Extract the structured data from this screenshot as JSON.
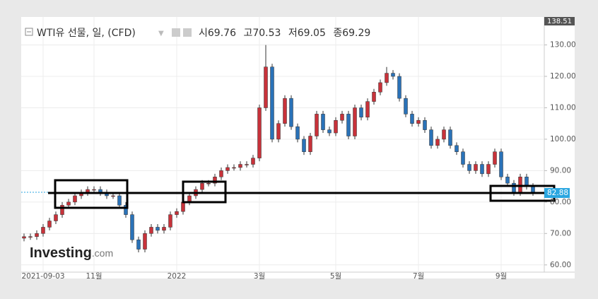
{
  "chart_data": {
    "type": "candlestick",
    "title": "WTI유 선물, 일, (CFD)",
    "ohlc_header": [
      {
        "label": "시",
        "value": 69.76
      },
      {
        "label": "고",
        "value": 70.53
      },
      {
        "label": "저",
        "value": 69.05
      },
      {
        "label": "종",
        "value": 69.29
      }
    ],
    "logo": {
      "brand": "Investing",
      "suffix": ".com"
    },
    "top_label": 138.51,
    "last_price": 82.88,
    "up_color": "#c8323a",
    "down_color": "#2a72b8",
    "categories": [
      null,
      null,
      null,
      "2021-09-03",
      null,
      null,
      null,
      null,
      null,
      null,
      null,
      "11월",
      null,
      null,
      null,
      null,
      null,
      null,
      null,
      null,
      null,
      null,
      null,
      null,
      "2022",
      null,
      null,
      null,
      null,
      null,
      null,
      null,
      null,
      null,
      null,
      null,
      null,
      "3월",
      null,
      null,
      null,
      null,
      null,
      null,
      null,
      null,
      null,
      null,
      null,
      "5월",
      null,
      null,
      null,
      null,
      null,
      null,
      null,
      null,
      null,
      null,
      null,
      null,
      "7월",
      null,
      null,
      null,
      null,
      null,
      null,
      null,
      null,
      null,
      null,
      null,
      null,
      "9월",
      null,
      null,
      null,
      null,
      null
    ],
    "open": [
      68.5,
      69,
      69,
      70,
      72,
      74,
      76,
      79,
      80,
      82,
      83,
      84,
      84,
      83,
      82,
      82,
      79,
      76,
      68,
      65,
      70,
      72,
      71,
      72,
      76,
      77,
      80,
      82,
      84,
      86,
      86,
      88,
      90,
      91,
      91,
      92,
      92,
      94,
      110,
      123,
      100,
      105,
      113,
      104,
      100,
      96,
      101,
      108,
      103,
      102,
      106,
      108,
      101,
      110,
      107,
      112,
      115,
      118,
      121,
      120,
      113,
      108,
      105,
      106,
      103,
      98,
      100,
      103,
      98,
      96,
      92,
      90,
      92,
      89,
      92,
      96,
      88,
      86,
      83,
      88,
      85
    ],
    "high": [
      70,
      70,
      71,
      73,
      75,
      77,
      80,
      81,
      83,
      84,
      85,
      85,
      85,
      84,
      83,
      83,
      80,
      77,
      69,
      71,
      73,
      73,
      73,
      77,
      78,
      81,
      83,
      85,
      87,
      87,
      89,
      91,
      92,
      92,
      93,
      93,
      95,
      111,
      130,
      124,
      106,
      114,
      114,
      105,
      101,
      102,
      109,
      109,
      104,
      107,
      109,
      109,
      111,
      111,
      113,
      116,
      119,
      123,
      122,
      121,
      114,
      109,
      107,
      107,
      104,
      101,
      104,
      104,
      99,
      97,
      93,
      93,
      93,
      93,
      97,
      97,
      89,
      87,
      89,
      89,
      86
    ],
    "low": [
      67.5,
      68,
      68,
      69,
      71,
      73,
      75,
      78,
      79,
      81,
      82,
      83,
      82,
      81,
      81,
      78,
      75,
      67,
      64,
      64,
      69,
      70,
      70,
      71,
      75,
      76,
      79,
      81,
      83,
      85,
      85,
      87,
      89,
      90,
      90,
      91,
      91,
      93,
      109,
      99,
      99,
      104,
      103,
      99,
      95,
      95,
      100,
      102,
      101,
      101,
      105,
      100,
      100,
      106,
      106,
      111,
      114,
      117,
      119,
      112,
      107,
      104,
      104,
      102,
      97,
      97,
      99,
      97,
      95,
      91,
      89,
      89,
      88,
      88,
      91,
      87,
      85,
      82,
      82,
      84,
      82
    ],
    "close": [
      69,
      69,
      70,
      72,
      74,
      76,
      79,
      80,
      82,
      83,
      84,
      84,
      83,
      82,
      82,
      79,
      76,
      68,
      65,
      70,
      72,
      71,
      72,
      76,
      77,
      80,
      82,
      84,
      86,
      86,
      88,
      90,
      91,
      91,
      92,
      92,
      94,
      110,
      123,
      100,
      105,
      113,
      104,
      100,
      96,
      101,
      108,
      103,
      102,
      106,
      108,
      101,
      110,
      107,
      112,
      115,
      118,
      121,
      120,
      113,
      108,
      105,
      106,
      103,
      98,
      100,
      103,
      98,
      96,
      92,
      90,
      92,
      89,
      92,
      96,
      88,
      86,
      83,
      88,
      85,
      83
    ],
    "ylim": [
      57.7,
      138.9
    ],
    "yticks": [
      {
        "value": 60,
        "label": "60.00"
      },
      {
        "value": 70,
        "label": "70.00"
      },
      {
        "value": 80,
        "label": "80.00"
      },
      {
        "value": 90,
        "label": "90.00"
      },
      {
        "value": 100,
        "label": "100.00"
      },
      {
        "value": 110,
        "label": "110.00"
      },
      {
        "value": 120,
        "label": "120.00"
      },
      {
        "value": 130,
        "label": "130.00"
      }
    ],
    "grid": true
  }
}
